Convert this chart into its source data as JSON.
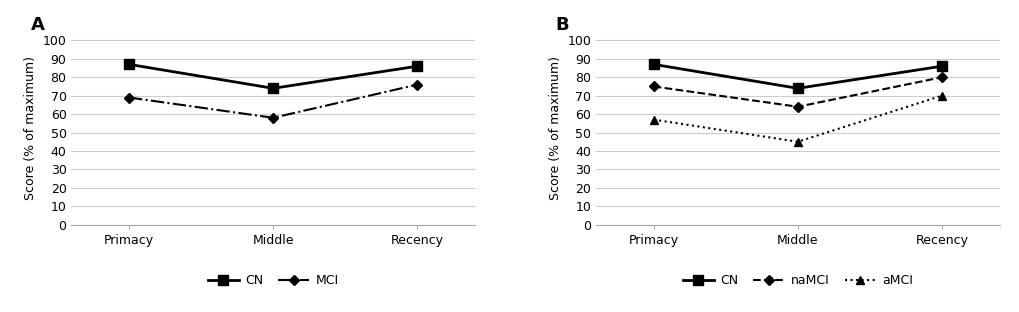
{
  "panel_A": {
    "label": "A",
    "categories": [
      "Primacy",
      "Middle",
      "Recency"
    ],
    "series": [
      {
        "name": "CN",
        "values": [
          87,
          74,
          86
        ],
        "linestyle": "-",
        "marker": "s",
        "color": "#000000",
        "linewidth": 2.0,
        "markersize": 7,
        "markerfill": "#000000"
      },
      {
        "name": "MCI",
        "values": [
          69,
          58,
          76
        ],
        "linestyle": "-.",
        "marker": "D",
        "color": "#000000",
        "linewidth": 1.5,
        "markersize": 5,
        "markerfill": "#000000"
      }
    ],
    "ylabel": "Score (% of maximum)",
    "ylim": [
      0,
      105
    ],
    "yticks": [
      0,
      10,
      20,
      30,
      40,
      50,
      60,
      70,
      80,
      90,
      100
    ]
  },
  "panel_B": {
    "label": "B",
    "categories": [
      "Primacy",
      "Middle",
      "Recency"
    ],
    "series": [
      {
        "name": "CN",
        "values": [
          87,
          74,
          86
        ],
        "linestyle": "-",
        "marker": "s",
        "color": "#000000",
        "linewidth": 2.0,
        "markersize": 7,
        "markerfill": "#000000"
      },
      {
        "name": "naMCI",
        "values": [
          75,
          64,
          80
        ],
        "linestyle": "--",
        "marker": "D",
        "color": "#000000",
        "linewidth": 1.5,
        "markersize": 5,
        "markerfill": "#000000"
      },
      {
        "name": "aMCI",
        "values": [
          57,
          45,
          70
        ],
        "linestyle": ":",
        "marker": "^",
        "color": "#000000",
        "linewidth": 1.5,
        "markersize": 6,
        "markerfill": "#000000"
      }
    ],
    "ylabel": "Score (% of maximum)",
    "ylim": [
      0,
      105
    ],
    "yticks": [
      0,
      10,
      20,
      30,
      40,
      50,
      60,
      70,
      80,
      90,
      100
    ]
  },
  "background_color": "#ffffff",
  "grid_color": "#cccccc",
  "figure_width": 10.2,
  "figure_height": 3.12,
  "dpi": 100
}
